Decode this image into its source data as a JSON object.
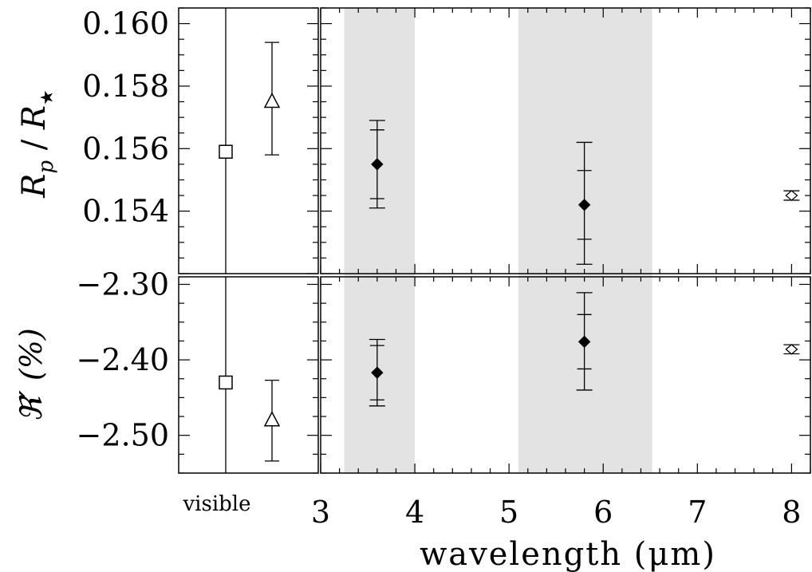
{
  "chart_data": {
    "type": "scatter",
    "xlabel": "wavelength (μm)",
    "visible_label": "visible",
    "x_ticks": [
      "3",
      "4",
      "5",
      "6",
      "7",
      "8"
    ],
    "xlim": [
      3.0,
      8.2
    ],
    "shaded_bands": [
      [
        3.25,
        4.0
      ],
      [
        5.1,
        6.52
      ]
    ],
    "panels": [
      {
        "name": "top",
        "ylabel": "R_p / R_★",
        "ylim": [
          0.152,
          0.1605
        ],
        "y_ticks": [
          "0.160",
          "0.158",
          "0.156",
          "0.154"
        ],
        "y_tick_values": [
          0.16,
          0.158,
          0.156,
          0.154
        ],
        "visible_points": [
          {
            "marker": "square",
            "offset": 0,
            "y": 0.1559,
            "err_outer": [
              0.144,
              0.167
            ]
          },
          {
            "marker": "triangle",
            "offset": 1,
            "y": 0.1575,
            "err_outer": [
              0.1558,
              0.1594
            ]
          }
        ],
        "points": [
          {
            "marker": "diamond-filled",
            "x": 3.6,
            "y": 0.1555,
            "err_inner": [
              0.1544,
              0.1566
            ],
            "err_outer": [
              0.1541,
              0.1569
            ]
          },
          {
            "marker": "diamond-filled",
            "x": 5.8,
            "y": 0.1542,
            "err_inner": [
              0.1531,
              0.1553
            ],
            "err_outer": [
              0.1523,
              0.1562
            ]
          },
          {
            "marker": "diamond-open",
            "x": 8.0,
            "y": 0.1545,
            "err_outer": [
              0.15435,
              0.15465
            ]
          }
        ]
      },
      {
        "name": "bottom",
        "ylabel": "ℜ′ (%)",
        "ylim": [
          -2.55,
          -2.29
        ],
        "y_ticks": [
          "−2.30",
          "−2.40",
          "−2.50"
        ],
        "y_tick_values": [
          -2.3,
          -2.4,
          -2.5
        ],
        "visible_points": [
          {
            "marker": "square",
            "offset": 0,
            "y": -2.43,
            "err_outer": [
              -2.8,
              -2.1
            ]
          },
          {
            "marker": "triangle",
            "offset": 1,
            "y": -2.48,
            "err_outer": [
              -2.534,
              -2.427
            ]
          }
        ],
        "points": [
          {
            "marker": "diamond-filled",
            "x": 3.6,
            "y": -2.417,
            "err_inner": [
              -2.453,
              -2.381
            ],
            "err_outer": [
              -2.461,
              -2.373
            ]
          },
          {
            "marker": "diamond-filled",
            "x": 5.8,
            "y": -2.376,
            "err_inner": [
              -2.412,
              -2.34
            ],
            "err_outer": [
              -2.44,
              -2.311
            ]
          },
          {
            "marker": "diamond-open",
            "x": 8.0,
            "y": -2.386,
            "err_outer": [
              -2.392,
              -2.38
            ]
          }
        ]
      }
    ]
  }
}
